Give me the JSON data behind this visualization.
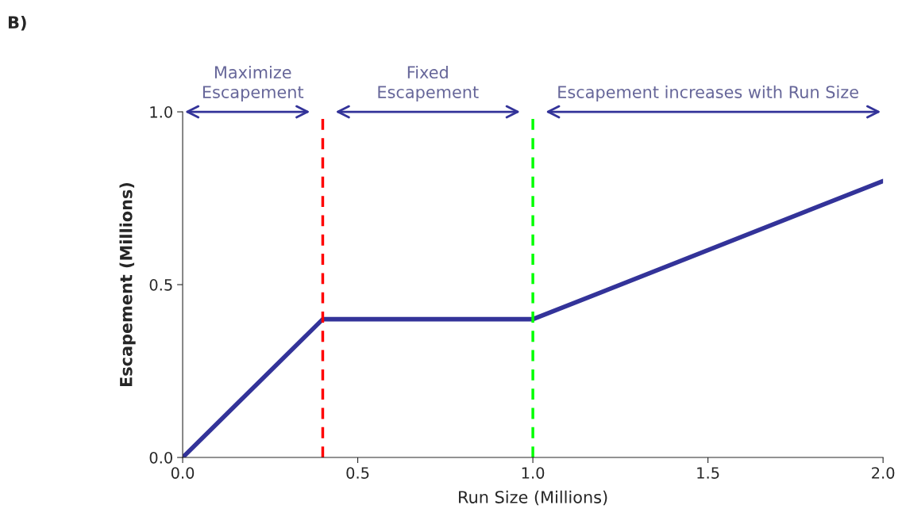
{
  "chart_data": {
    "type": "line",
    "title": "B)",
    "xlabel": "Run Size (Millions)",
    "ylabel": "Escapement (Millions)",
    "x": [
      0,
      0.4,
      1.0,
      2.0
    ],
    "series": [
      {
        "color": "#333399",
        "values": [
          0,
          0.4,
          0.4,
          0.8
        ]
      }
    ],
    "xlim": [
      0,
      2.0
    ],
    "ylim": [
      0,
      1.0
    ],
    "xticks": [
      {
        "value": 0,
        "label": "0.0"
      },
      0.5,
      {
        "value": 1,
        "label": "1.0"
      },
      1.5,
      {
        "value": 2,
        "label": "2.0"
      }
    ],
    "yticks": [
      {
        "value": 0,
        "label": "0.0"
      },
      0.5,
      {
        "value": 1,
        "label": "1.0"
      }
    ],
    "ref_lines": [
      {
        "axis": "x",
        "value": 0.4,
        "color": "#ff0000",
        "line_style": "dashed"
      },
      {
        "axis": "x",
        "value": 1.0,
        "color": "#00ff00",
        "line_style": "dashed"
      }
    ],
    "annotations": [
      "Maximize Escapement",
      "Fixed Escapement",
      "Escapement increases with Run Size"
    ],
    "grid": false,
    "marker": "none",
    "line_style": "solid"
  }
}
